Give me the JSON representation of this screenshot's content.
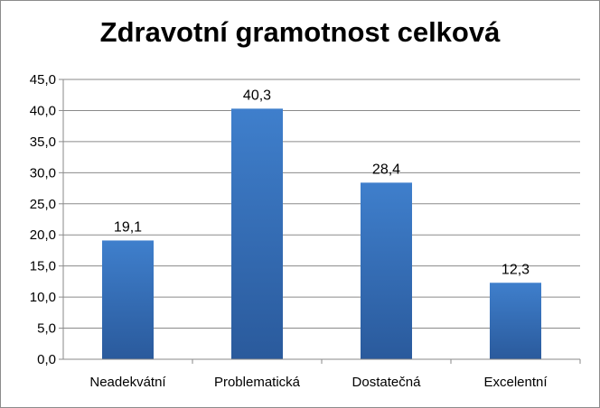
{
  "chart_data": {
    "type": "bar",
    "title": "Zdravotní gramotnost celková",
    "categories": [
      "Neadekvátní",
      "Problematická",
      "Dostatečná",
      "Excelentní"
    ],
    "values": [
      19.1,
      40.3,
      28.4,
      12.3
    ],
    "value_labels": [
      "19,1",
      "40,3",
      "28,4",
      "12,3"
    ],
    "ylim": [
      0,
      45
    ],
    "yticks": [
      0,
      5,
      10,
      15,
      20,
      25,
      30,
      35,
      40,
      45
    ],
    "ytick_labels": [
      "0,0",
      "5,0",
      "10,0",
      "15,0",
      "20,0",
      "25,0",
      "30,0",
      "35,0",
      "40,0",
      "45,0"
    ],
    "grid": true,
    "bar_color": "#3a72b8",
    "bar_color_dark": "#1e4f8f"
  }
}
